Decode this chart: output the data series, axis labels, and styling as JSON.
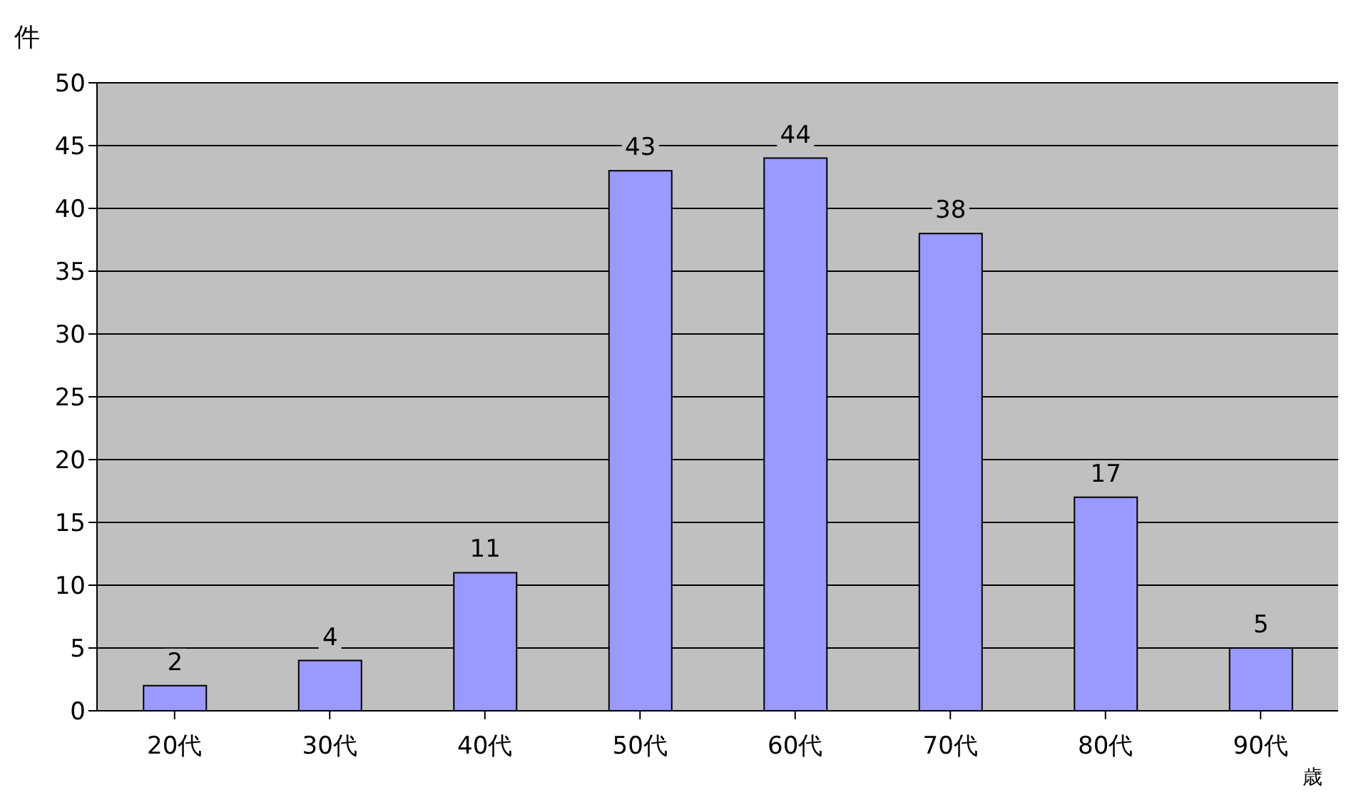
{
  "chart_data": {
    "type": "bar",
    "ylabel": "件",
    "xlabel": "歳",
    "categories": [
      "20代",
      "30代",
      "40代",
      "50代",
      "60代",
      "70代",
      "80代",
      "90代"
    ],
    "values": [
      2,
      4,
      11,
      43,
      44,
      38,
      17,
      5
    ],
    "color": "#9999ff",
    "ylim": [
      0,
      50
    ],
    "yticks": [
      0,
      5,
      10,
      15,
      20,
      25,
      30,
      35,
      40,
      45,
      50
    ],
    "grid": "y",
    "data_labels": true
  }
}
